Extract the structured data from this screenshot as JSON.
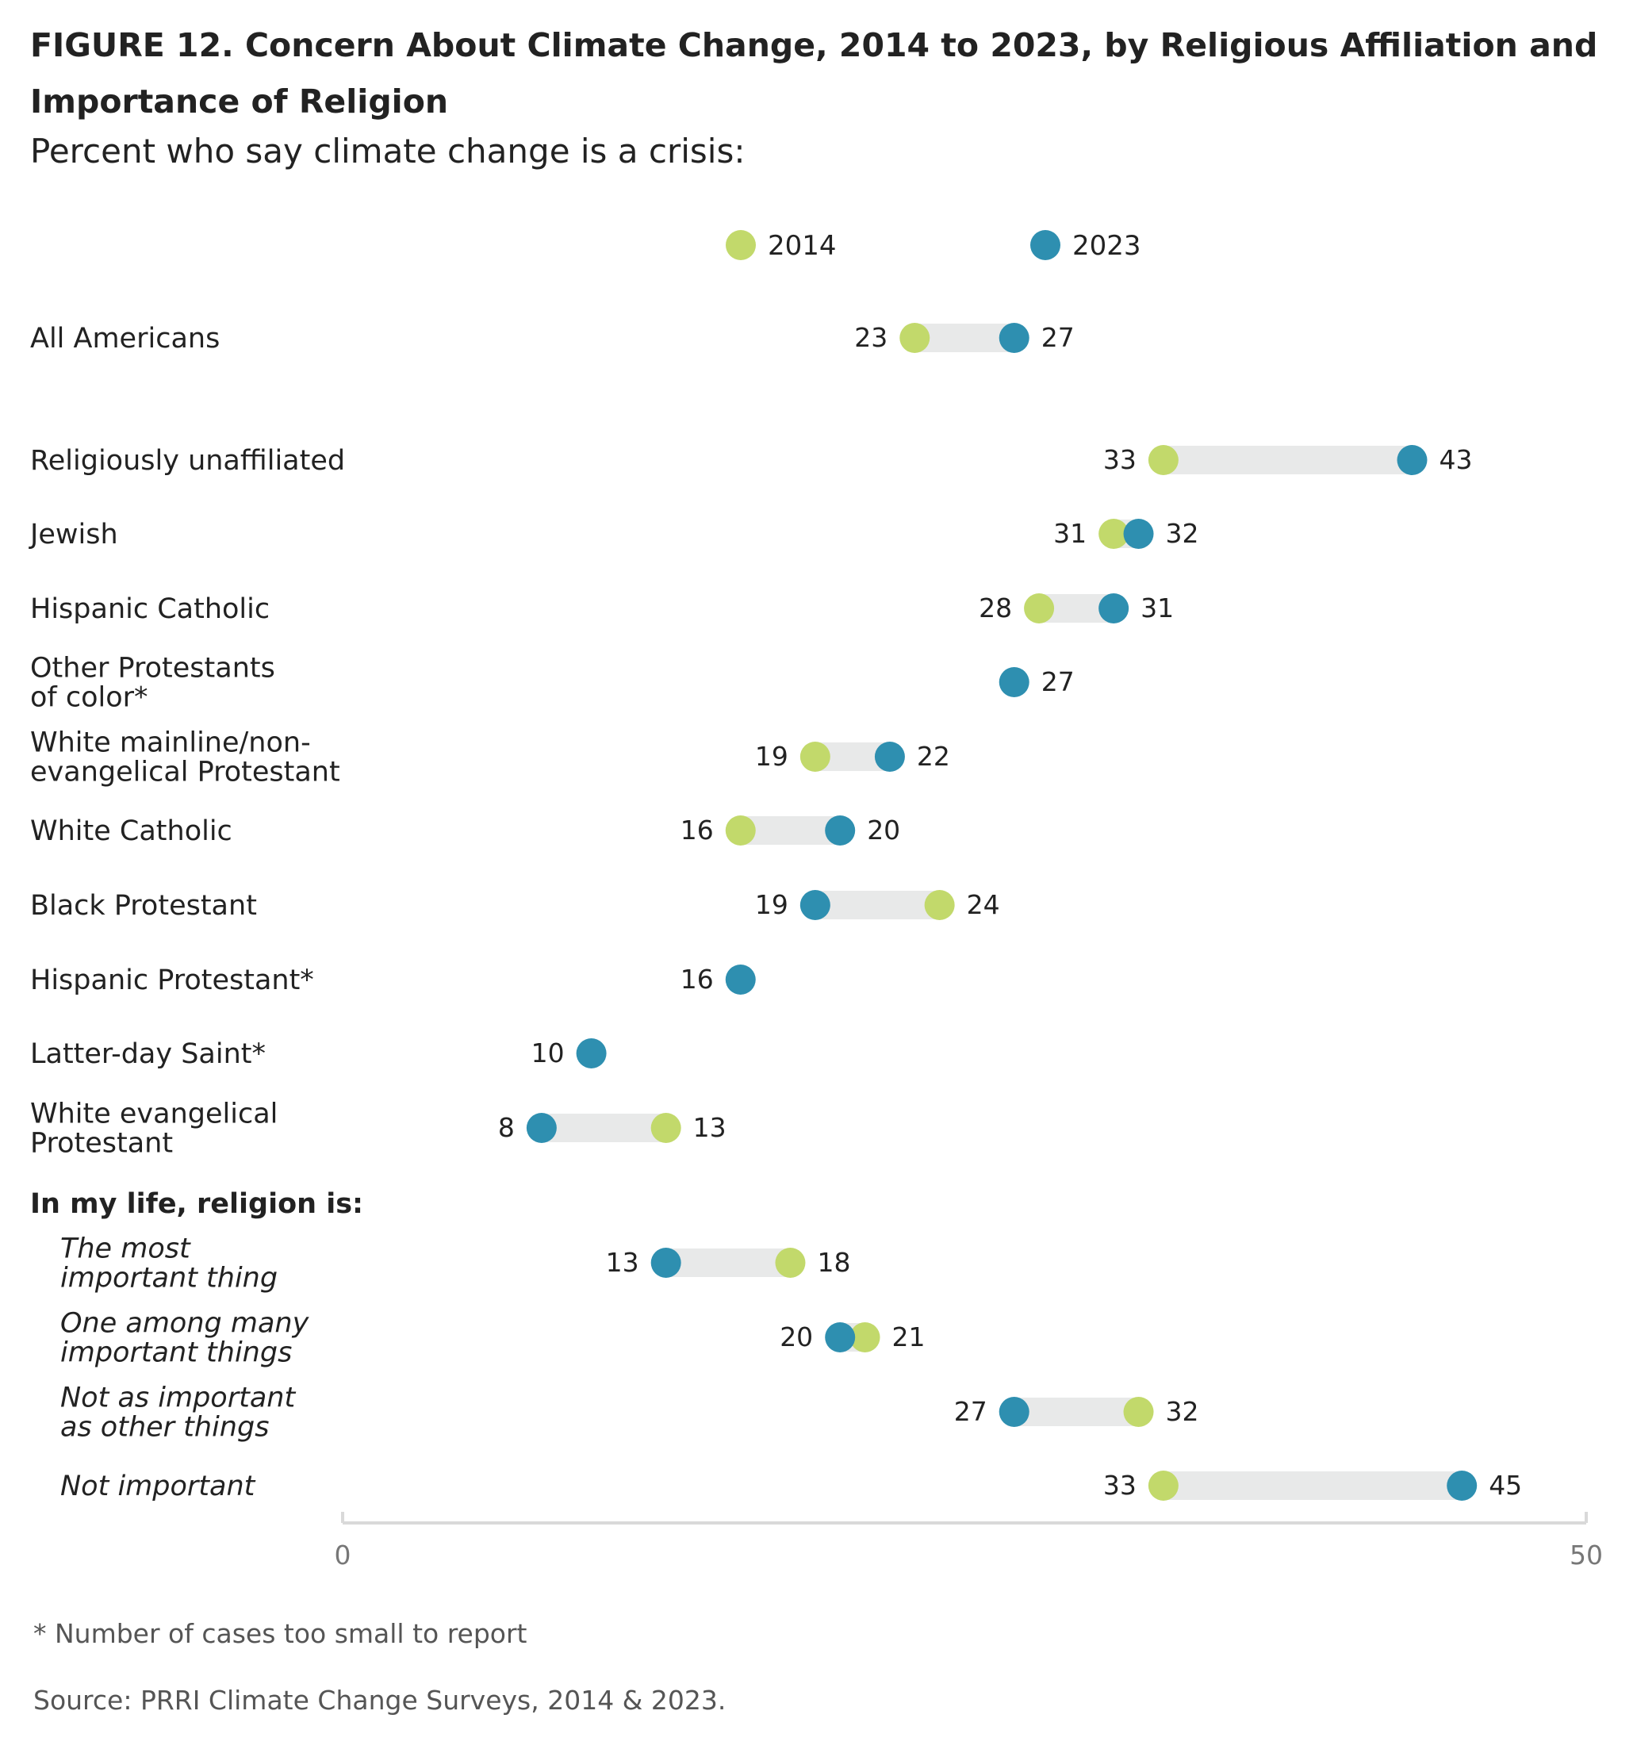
{
  "title": "FIGURE 12. Concern About Climate Change, 2014 to 2023, by Religious Affiliation and Importance of Religion",
  "subtitle": "Percent who say climate change is a crisis:",
  "footnote": "* Number of cases too small to report",
  "source": "Source: PRRI Climate Change Surveys, 2014 & 2023.",
  "colors": {
    "y2014": "#c2d96b",
    "y2023": "#2e8fb0",
    "bar": "#e8e9e9",
    "axis": "#d9d9d9",
    "text": "#222222"
  },
  "chart_data": {
    "type": "dumbbell",
    "xlim": [
      0,
      50
    ],
    "xticks": [
      "0",
      "50"
    ],
    "grid": false,
    "legend_position": "top",
    "series": [
      {
        "name": "2014",
        "color": "#c2d96b"
      },
      {
        "name": "2023",
        "color": "#2e8fb0"
      }
    ],
    "section_header": "In my life, religion is:",
    "rows": [
      {
        "label": "All Americans",
        "v2014": 23,
        "v2023": 27,
        "italic": false
      },
      {
        "label": "Religiously unaffiliated",
        "v2014": 33,
        "v2023": 43,
        "italic": false
      },
      {
        "label": "Jewish",
        "v2014": 31,
        "v2023": 32,
        "italic": false
      },
      {
        "label": "Hispanic Catholic",
        "v2014": 28,
        "v2023": 31,
        "italic": false
      },
      {
        "label": "Other Protestants\nof color*",
        "v2014": null,
        "v2023": 27,
        "italic": false
      },
      {
        "label": "White mainline/non-\nevangelical Protestant",
        "v2014": 19,
        "v2023": 22,
        "italic": false
      },
      {
        "label": "White Catholic",
        "v2014": 16,
        "v2023": 20,
        "italic": false
      },
      {
        "label": "Black Protestant",
        "v2014": 24,
        "v2023": 19,
        "italic": false
      },
      {
        "label": "Hispanic Protestant*",
        "v2014": null,
        "v2023": 16,
        "italic": false
      },
      {
        "label": "Latter-day Saint*",
        "v2014": null,
        "v2023": 10,
        "italic": false
      },
      {
        "label": "White evangelical\nProtestant",
        "v2014": 13,
        "v2023": 8,
        "italic": false
      },
      {
        "label": "The most\nimportant thing",
        "v2014": 18,
        "v2023": 13,
        "italic": true
      },
      {
        "label": "One among many\nimportant things",
        "v2014": 21,
        "v2023": 20,
        "italic": true
      },
      {
        "label": "Not as important\nas other things",
        "v2014": 32,
        "v2023": 27,
        "italic": true
      },
      {
        "label": "Not important",
        "v2014": 33,
        "v2023": 45,
        "italic": true
      }
    ]
  }
}
